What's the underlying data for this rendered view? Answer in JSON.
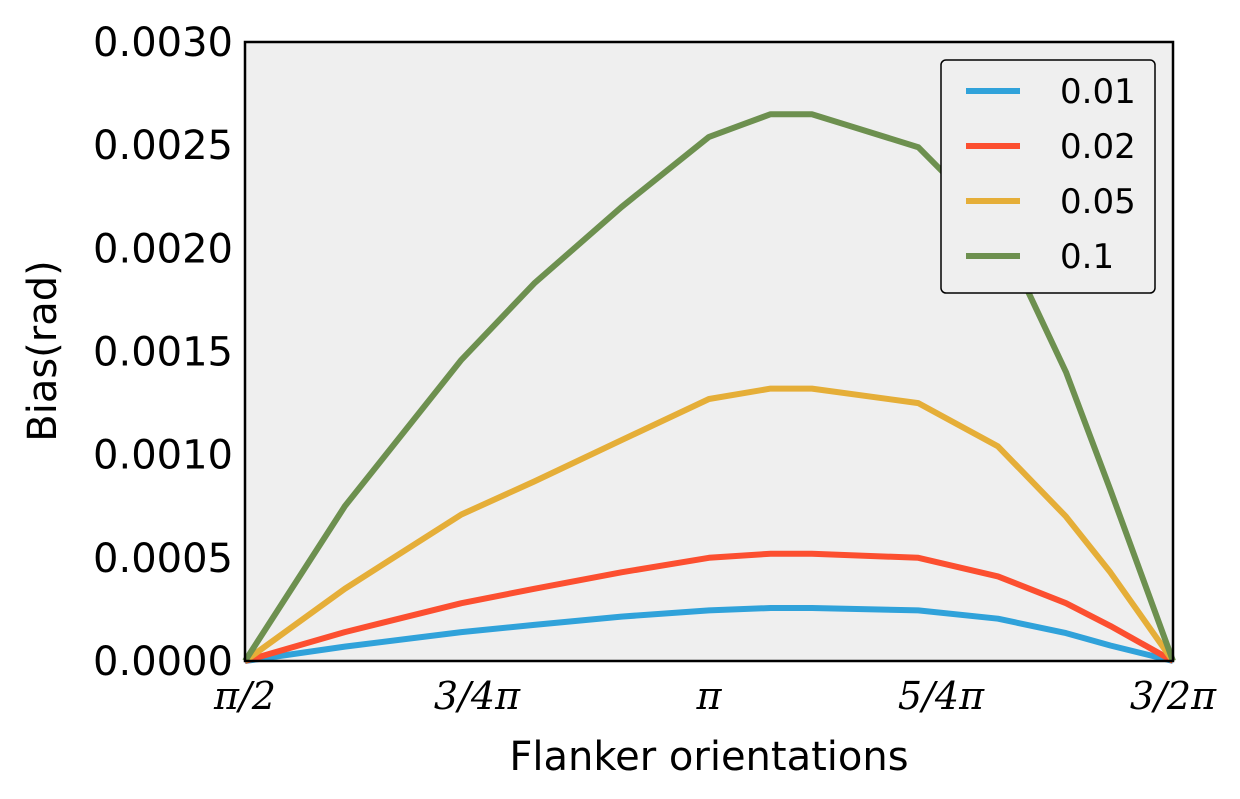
{
  "chart_data": {
    "type": "line",
    "xlabel": "Flanker orientations",
    "ylabel": "Bias(rad)",
    "xlim": [
      1.5708,
      4.7124
    ],
    "ylim": [
      0,
      0.003
    ],
    "x_ticks": [
      {
        "value": 1.5708,
        "label": "π/2"
      },
      {
        "value": 2.3562,
        "label": "3/4π"
      },
      {
        "value": 3.1416,
        "label": "π"
      },
      {
        "value": 3.927,
        "label": "5/4π"
      },
      {
        "value": 4.7124,
        "label": "3/2π"
      }
    ],
    "y_ticks": [
      {
        "value": 0.0,
        "label": "0.0000"
      },
      {
        "value": 0.0005,
        "label": "0.0005"
      },
      {
        "value": 0.001,
        "label": "0.0010"
      },
      {
        "value": 0.0015,
        "label": "0.0015"
      },
      {
        "value": 0.002,
        "label": "0.0020"
      },
      {
        "value": 0.0025,
        "label": "0.0025"
      },
      {
        "value": 0.003,
        "label": "0.0030"
      }
    ],
    "grid": false,
    "background": "#efefef",
    "legend_position": "top-right",
    "x": [
      1.5708,
      1.9085,
      2.3035,
      2.55,
      2.845,
      3.1416,
      3.35,
      3.49,
      3.85,
      4.12,
      4.35,
      4.5,
      4.7124
    ],
    "series": [
      {
        "name": "0.01",
        "color": "#30a2da",
        "values": [
          0.0,
          7e-05,
          0.00014,
          0.000175,
          0.000215,
          0.000245,
          0.000257,
          0.000257,
          0.000245,
          0.000205,
          0.000135,
          7.5e-05,
          0.0
        ]
      },
      {
        "name": "0.02",
        "color": "#fc4f30",
        "values": [
          0.0,
          0.00014,
          0.00028,
          0.00035,
          0.00043,
          0.0005,
          0.00052,
          0.00052,
          0.0005,
          0.00041,
          0.00028,
          0.00017,
          0.0
        ]
      },
      {
        "name": "0.05",
        "color": "#e5ae38",
        "values": [
          0.0,
          0.00035,
          0.00071,
          0.00087,
          0.00107,
          0.00127,
          0.00132,
          0.00132,
          0.00125,
          0.00104,
          0.0007,
          0.00043,
          0.0
        ]
      },
      {
        "name": "0.1",
        "color": "#6d904f",
        "values": [
          0.0,
          0.00075,
          0.00146,
          0.00183,
          0.0022,
          0.00254,
          0.00265,
          0.00265,
          0.00249,
          0.0021,
          0.0014,
          0.00083,
          0.0
        ]
      }
    ]
  }
}
